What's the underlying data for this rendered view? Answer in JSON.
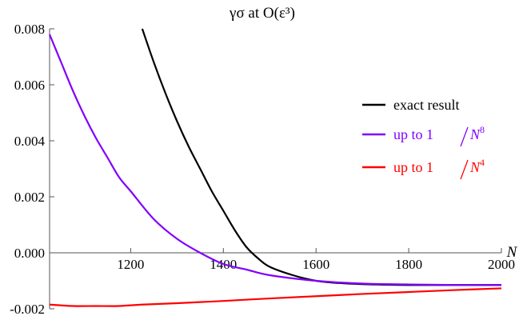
{
  "chart_data": {
    "type": "line",
    "title": "γσ at O(ε³)",
    "xlabel": "N",
    "ylabel": "",
    "xlim": [
      1025,
      2000
    ],
    "ylim": [
      -0.002,
      0.008
    ],
    "x_ticks": [
      1200,
      1400,
      1600,
      1800,
      2000
    ],
    "x_tick_labels": [
      "1200",
      "1400",
      "1600",
      "1800",
      "2000"
    ],
    "y_ticks": [
      -0.002,
      0.0,
      0.002,
      0.004,
      0.006,
      0.008
    ],
    "y_tick_labels": [
      "-0.002",
      "0.000",
      "0.002",
      "0.004",
      "0.006",
      "0.008"
    ],
    "grid": false,
    "legend_position": "right",
    "series": [
      {
        "name": "exact result",
        "color": "#000000",
        "x": [
          1225,
          1250,
          1275,
          1300,
          1325,
          1350,
          1375,
          1400,
          1425,
          1450,
          1475,
          1500,
          1550,
          1600,
          1650,
          1700,
          1750,
          1800,
          1850,
          1900,
          1950,
          2000
        ],
        "y": [
          0.008,
          0.0068,
          0.0057,
          0.0047,
          0.0038,
          0.003,
          0.0022,
          0.0015,
          0.0008,
          0.0002,
          -0.0002,
          -0.0005,
          -0.0008,
          -0.001,
          -0.00108,
          -0.00112,
          -0.00114,
          -0.00115,
          -0.00115,
          -0.00115,
          -0.00115,
          -0.00115
        ]
      },
      {
        "name": "up to 1/N⁸",
        "color": "#8000ff",
        "x": [
          1025,
          1050,
          1075,
          1100,
          1125,
          1150,
          1175,
          1200,
          1250,
          1300,
          1350,
          1400,
          1450,
          1500,
          1600,
          1700,
          1800,
          1900,
          2000
        ],
        "y": [
          0.0078,
          0.0068,
          0.0058,
          0.0049,
          0.0041,
          0.0034,
          0.0027,
          0.0022,
          0.0012,
          0.0005,
          0.0,
          -0.0004,
          -0.0006,
          -0.0008,
          -0.001,
          -0.0011,
          -0.00113,
          -0.00115,
          -0.00115
        ]
      },
      {
        "name": "up to 1/N⁴",
        "color": "#ff0000",
        "x": [
          1025,
          1075,
          1125,
          1175,
          1225,
          1300,
          1400,
          1500,
          1600,
          1700,
          1800,
          1900,
          2000
        ],
        "y": [
          -0.00185,
          -0.0019,
          -0.0019,
          -0.0019,
          -0.00185,
          -0.0018,
          -0.00172,
          -0.00163,
          -0.00155,
          -0.00147,
          -0.0014,
          -0.00133,
          -0.00127
        ]
      }
    ],
    "legend": [
      {
        "label": "exact result",
        "color": "#000000"
      },
      {
        "label": "up to 1/N⁸",
        "prefix": "up to 1",
        "base": "N",
        "exp": "8",
        "color": "#8000ff"
      },
      {
        "label": "up to 1/N⁴",
        "prefix": "up to 1",
        "base": "N",
        "exp": "4",
        "color": "#ff0000"
      }
    ]
  }
}
